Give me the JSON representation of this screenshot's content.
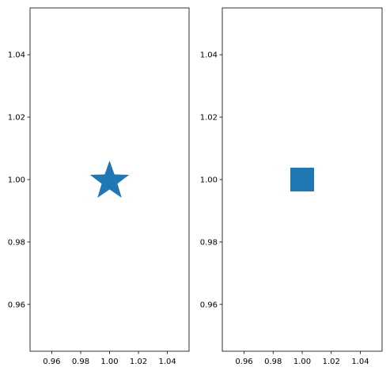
{
  "chart_data": [
    {
      "type": "scatter",
      "title": "",
      "xlabel": "",
      "ylabel": "",
      "xlim": [
        0.945,
        1.055
      ],
      "ylim": [
        0.945,
        1.055
      ],
      "xticks": [
        0.96,
        0.98,
        1.0,
        1.02,
        1.04
      ],
      "yticks": [
        0.96,
        0.98,
        1.0,
        1.02,
        1.04
      ],
      "xtick_labels": [
        "0.96",
        "0.98",
        "1.00",
        "1.02",
        "1.04"
      ],
      "ytick_labels": [
        "0.96",
        "0.98",
        "1.00",
        "1.02",
        "1.04"
      ],
      "grid": false,
      "series": [
        {
          "marker": "star",
          "color": "#1f77b4",
          "points": [
            {
              "x": 1.0,
              "y": 1.0
            }
          ]
        }
      ]
    },
    {
      "type": "scatter",
      "title": "",
      "xlabel": "",
      "ylabel": "",
      "xlim": [
        0.945,
        1.055
      ],
      "ylim": [
        0.945,
        1.055
      ],
      "xticks": [
        0.96,
        0.98,
        1.0,
        1.02,
        1.04
      ],
      "yticks": [
        0.96,
        0.98,
        1.0,
        1.02,
        1.04
      ],
      "xtick_labels": [
        "0.96",
        "0.98",
        "1.00",
        "1.02",
        "1.04"
      ],
      "ytick_labels": [
        "0.96",
        "0.98",
        "1.00",
        "1.02",
        "1.04"
      ],
      "grid": false,
      "series": [
        {
          "marker": "square",
          "color": "#1f77b4",
          "points": [
            {
              "x": 1.0,
              "y": 1.0
            }
          ]
        }
      ]
    }
  ]
}
